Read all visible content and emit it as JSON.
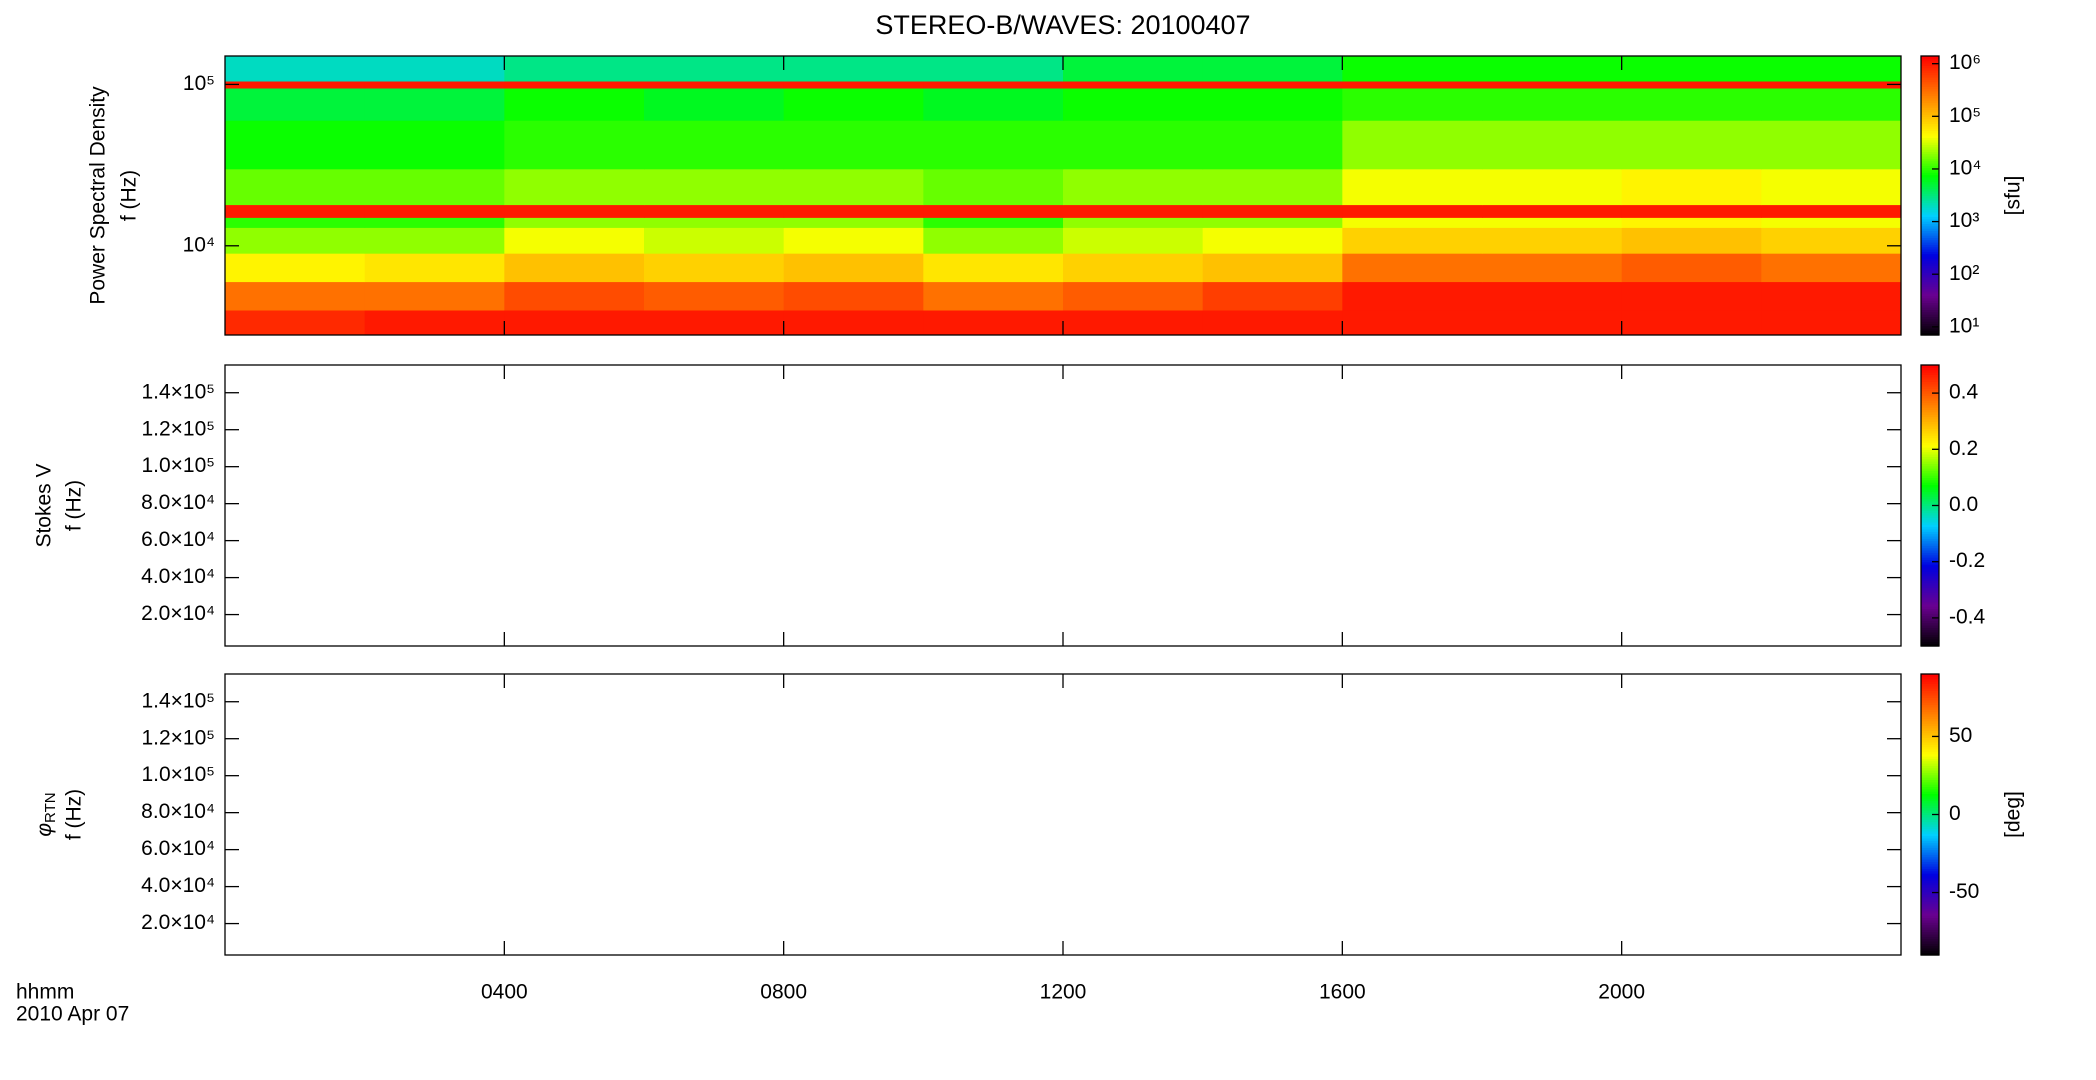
{
  "chart_data": [
    {
      "type": "heatmap",
      "title": "STEREO-B/WAVES: 20100407",
      "ylabel": [
        "Power Spectral Density",
        "f (Hz)"
      ],
      "xlim": [
        0,
        24
      ],
      "xticks": [
        4,
        8,
        12,
        16,
        20
      ],
      "ylim": [
        2800,
        150000
      ],
      "ylog": true,
      "yticks": [
        {
          "value": 10000,
          "label": "10⁴"
        },
        {
          "value": 100000,
          "label": "10⁵"
        }
      ],
      "x_edges": [
        0,
        2,
        4,
        6,
        8,
        10,
        12,
        14,
        16,
        18,
        20,
        22,
        24
      ],
      "y_edges": [
        2800,
        4000,
        6000,
        9000,
        13000,
        15000,
        18000,
        30000,
        60000,
        95000,
        105000,
        150000
      ],
      "z": [
        [
          800000.0,
          1000000.0,
          1000000.0,
          1000000.0,
          1000000.0,
          1000000.0,
          1000000.0,
          1000000.0,
          1000000.0,
          1000000.0,
          1000000.0,
          1000000.0
        ],
        [
          300000.0,
          300000.0,
          500000.0,
          400000.0,
          500000.0,
          300000.0,
          400000.0,
          600000.0,
          1000000.0,
          1000000.0,
          1000000.0,
          1000000.0
        ],
        [
          50000.0,
          60000.0,
          100000.0,
          80000.0,
          100000.0,
          60000.0,
          80000.0,
          100000.0,
          300000.0,
          300000.0,
          400000.0,
          300000.0
        ],
        [
          20000.0,
          20000.0,
          40000.0,
          30000.0,
          40000.0,
          20000.0,
          30000.0,
          40000.0,
          80000.0,
          80000.0,
          100000.0,
          80000.0
        ],
        [
          10000.0,
          10000.0,
          20000.0,
          20000.0,
          20000.0,
          10000.0,
          20000.0,
          20000.0,
          40000.0,
          40000.0,
          50000.0,
          40000.0
        ],
        [
          1000000.0,
          1000000.0,
          1000000.0,
          1000000.0,
          1000000.0,
          1000000.0,
          1000000.0,
          1000000.0,
          1000000.0,
          1000000.0,
          1000000.0,
          1000000.0
        ],
        [
          15000.0,
          15000.0,
          20000.0,
          20000.0,
          20000.0,
          15000.0,
          20000.0,
          20000.0,
          40000.0,
          40000.0,
          50000.0,
          40000.0
        ],
        [
          8000.0,
          8000.0,
          10000.0,
          10000.0,
          10000.0,
          10000.0,
          10000.0,
          10000.0,
          20000.0,
          20000.0,
          20000.0,
          20000.0
        ],
        [
          5000.0,
          5000.0,
          8000.0,
          6000.0,
          8000.0,
          6000.0,
          8000.0,
          8000.0,
          10000.0,
          10000.0,
          10000.0,
          10000.0
        ],
        [
          1000000.0,
          1000000.0,
          1000000.0,
          1000000.0,
          1000000.0,
          1000000.0,
          1000000.0,
          1000000.0,
          1000000.0,
          1000000.0,
          1000000.0,
          1000000.0
        ],
        [
          2000.0,
          2000.0,
          3000.0,
          3000.0,
          3000.0,
          3000.0,
          5000.0,
          5000.0,
          8000.0,
          8000.0,
          8000.0,
          8000.0
        ]
      ],
      "clim": [
        7,
        1400000
      ],
      "clog": true,
      "cticks": [
        {
          "value": 10,
          "label": "10¹"
        },
        {
          "value": 100,
          "label": "10²"
        },
        {
          "value": 1000,
          "label": "10³"
        },
        {
          "value": 10000,
          "label": "10⁴"
        },
        {
          "value": 100000,
          "label": "10⁵"
        },
        {
          "value": 1000000,
          "label": "10⁶"
        }
      ],
      "clabel": "[sfu]",
      "colormap": [
        "#000000",
        "#6a0090",
        "#0000e0",
        "#00d0ff",
        "#00ff00",
        "#ffff00",
        "#ff8000",
        "#ff0000"
      ]
    },
    {
      "type": "heatmap",
      "ylabel": [
        "Stokes V",
        "f (Hz)"
      ],
      "xlim": [
        0,
        24
      ],
      "xticks": [
        4,
        8,
        12,
        16,
        20
      ],
      "ylim": [
        3000,
        155000
      ],
      "yticks": [
        {
          "value": 20000,
          "label": "2.0×10⁴"
        },
        {
          "value": 40000,
          "label": "4.0×10⁴"
        },
        {
          "value": 60000,
          "label": "6.0×10⁴"
        },
        {
          "value": 80000,
          "label": "8.0×10⁴"
        },
        {
          "value": 100000,
          "label": "1.0×10⁵"
        },
        {
          "value": 120000,
          "label": "1.2×10⁵"
        },
        {
          "value": 140000,
          "label": "1.4×10⁵"
        }
      ],
      "clim": [
        -0.5,
        0.5
      ],
      "cticks": [
        -0.4,
        -0.2,
        {
          "value": 0,
          "label": "0.0"
        },
        0.2,
        0.4
      ],
      "colormap": [
        "#000000",
        "#6a0090",
        "#0000e0",
        "#00d0ff",
        "#00ff00",
        "#ffff00",
        "#ff8000",
        "#ff0000"
      ]
    },
    {
      "type": "heatmap",
      "ylabel": [
        {
          "symbol": "φ",
          "sub": "RTN"
        },
        "f (Hz)"
      ],
      "xlim": [
        0,
        24
      ],
      "xticks": [
        {
          "value": 4,
          "label": "0400"
        },
        {
          "value": 8,
          "label": "0800"
        },
        {
          "value": 12,
          "label": "1200"
        },
        {
          "value": 16,
          "label": "1600"
        },
        {
          "value": 20,
          "label": "2000"
        }
      ],
      "xlabel": [
        "hhmm",
        "2010 Apr 07"
      ],
      "ylim": [
        3000,
        155000
      ],
      "yticks": [
        {
          "value": 20000,
          "label": "2.0×10⁴"
        },
        {
          "value": 40000,
          "label": "4.0×10⁴"
        },
        {
          "value": 60000,
          "label": "6.0×10⁴"
        },
        {
          "value": 80000,
          "label": "8.0×10⁴"
        },
        {
          "value": 100000,
          "label": "1.0×10⁵"
        },
        {
          "value": 120000,
          "label": "1.2×10⁵"
        },
        {
          "value": 140000,
          "label": "1.4×10⁵"
        }
      ],
      "clim": [
        -90,
        90
      ],
      "cticks": [
        -50,
        0,
        50
      ],
      "clabel": "[deg]",
      "colormap": [
        "#000000",
        "#6a0090",
        "#0000e0",
        "#00d0ff",
        "#00ff00",
        "#ffff00",
        "#ff8000",
        "#ff0000"
      ]
    }
  ]
}
